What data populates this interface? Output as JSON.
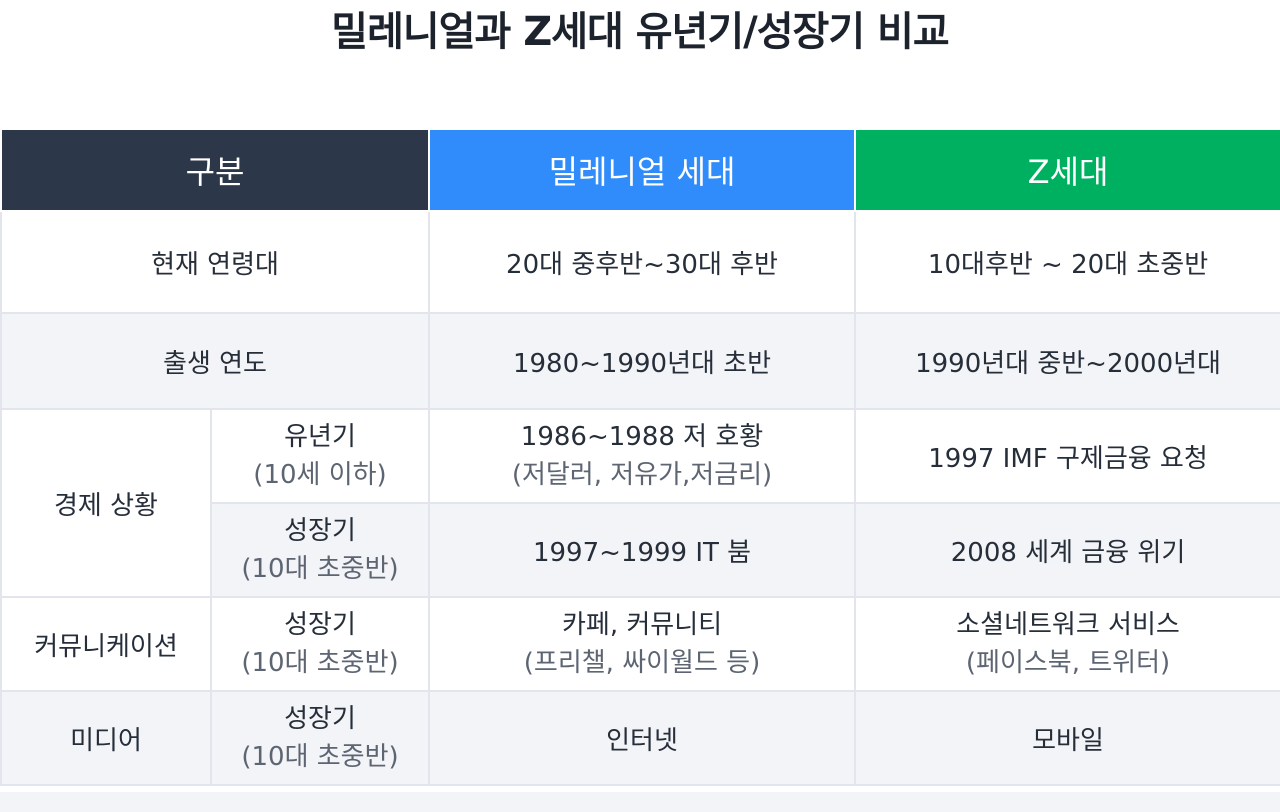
{
  "title": "밀레니얼과 Z세대 유년기/성장기 비교",
  "header": {
    "label": "구분",
    "millennial": "밀레니얼 세대",
    "genz": "Z세대"
  },
  "colors": {
    "header_label_bg": "#2c3749",
    "header_millennial_bg": "#2f8cfa",
    "header_genz_bg": "#00b061",
    "alt_row_bg": "#f3f4f7"
  },
  "rows": {
    "age": {
      "label": "현재 연령대",
      "millennial": "20대 중후반~30대 후반",
      "genz": "10대후반 ~ 20대 초중반"
    },
    "birth": {
      "label": "출생 연도",
      "millennial": "1980~1990년대 초반",
      "genz": "1990년대 중반~2000년대"
    },
    "economy": {
      "label": "경제 상황",
      "childhood": {
        "sub": "유년기",
        "sub_note": "(10세 이하)",
        "millennial": "1986~1988 저 호황",
        "millennial_note": "(저달러, 저유가,저금리)",
        "genz": "1997 IMF 구제금융 요청"
      },
      "growth": {
        "sub": "성장기",
        "sub_note": "(10대 초중반)",
        "millennial": "1997~1999 IT 붐",
        "genz": "2008 세계 금융 위기"
      }
    },
    "communication": {
      "label": "커뮤니케이션",
      "sub": "성장기",
      "sub_note": "(10대 초중반)",
      "millennial": "카페, 커뮤니티",
      "millennial_note": "(프리챌, 싸이월드 등)",
      "genz": "소셜네트워크 서비스",
      "genz_note": "(페이스북, 트위터)"
    },
    "media": {
      "label": "미디어",
      "sub": "성장기",
      "sub_note": "(10대 초중반)",
      "millennial": "인터넷",
      "genz": "모바일"
    }
  }
}
